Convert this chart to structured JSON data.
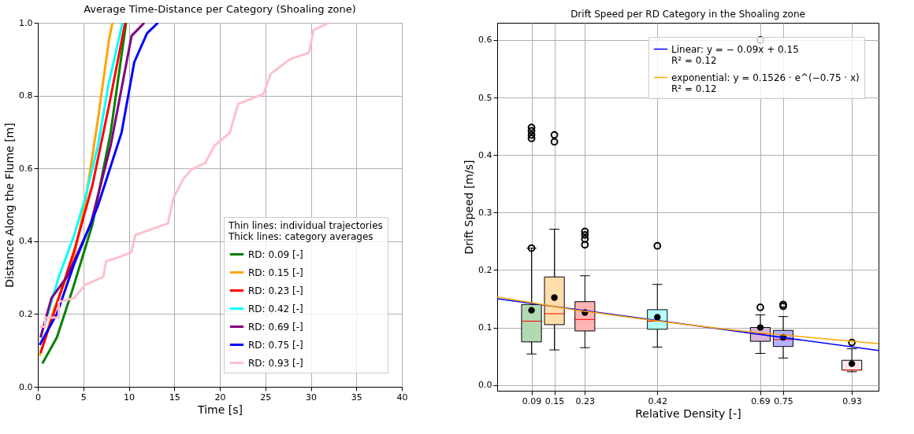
{
  "chart_data": [
    {
      "type": "line",
      "title": "Average Time-Distance per Category (Shoaling zone)",
      "xlabel": "Time [s]",
      "ylabel": "Distance Along the Flume [m]",
      "legend_title": "Thin lines: individual trajectories\nThick lines: category averages",
      "series": [
        {
          "name": "RD: 0.09 [-]",
          "color": "#008000",
          "x": [
            0.5,
            2.1,
            3.8,
            6.0,
            8.0,
            9.7
          ],
          "values": [
            0.064,
            0.136,
            0.266,
            0.446,
            0.698,
            1.0
          ]
        },
        {
          "name": "RD: 0.15 [-]",
          "color": "#ffa500",
          "x": [
            0.2,
            1.8,
            3.8,
            5.2,
            6.6,
            7.8,
            8.2
          ],
          "values": [
            0.085,
            0.215,
            0.338,
            0.504,
            0.734,
            0.95,
            1.0
          ]
        },
        {
          "name": "RD: 0.23 [-]",
          "color": "#ff0000",
          "x": [
            0.3,
            2.3,
            4.0,
            6.0,
            7.8,
            9.6
          ],
          "values": [
            0.093,
            0.244,
            0.374,
            0.554,
            0.77,
            1.0
          ]
        },
        {
          "name": "RD: 0.42 [-]",
          "color": "#00ffff",
          "x": [
            0.3,
            1.2,
            2.3,
            4.0,
            5.2,
            6.6,
            7.8,
            9.3
          ],
          "values": [
            0.136,
            0.208,
            0.302,
            0.417,
            0.518,
            0.662,
            0.834,
            1.0
          ]
        },
        {
          "name": "RD: 0.69 [-]",
          "color": "#800080",
          "x": [
            0.3,
            1.5,
            3.2,
            5.8,
            8.0,
            10.3,
            11.7
          ],
          "values": [
            0.136,
            0.244,
            0.302,
            0.446,
            0.662,
            0.964,
            1.0
          ]
        },
        {
          "name": "RD: 0.75 [-]",
          "color": "#0000ff",
          "x": [
            0.2,
            2.1,
            4.0,
            6.6,
            9.2,
            10.6,
            12.0,
            13.2
          ],
          "values": [
            0.115,
            0.201,
            0.338,
            0.497,
            0.698,
            0.892,
            0.971,
            1.0
          ]
        },
        {
          "name": "RD: 0.93 [-]",
          "color": "#ffc0cb",
          "x": [
            0.2,
            0.8,
            0.8,
            2.3,
            2.3,
            4.0,
            5.2,
            7.2,
            7.5,
            8.9,
            10.3,
            10.7,
            12.3,
            14.3,
            14.9,
            16.0,
            16.9,
            18.4,
            19.4,
            21.1,
            22.0,
            24.8,
            25.6,
            27.7,
            29.8,
            30.3,
            32.0
          ],
          "values": [
            0.165,
            0.165,
            0.19,
            0.19,
            0.233,
            0.244,
            0.28,
            0.302,
            0.345,
            0.356,
            0.37,
            0.417,
            0.431,
            0.449,
            0.518,
            0.572,
            0.597,
            0.615,
            0.662,
            0.698,
            0.777,
            0.805,
            0.86,
            0.9,
            0.918,
            0.98,
            1.0
          ]
        }
      ],
      "xlim": [
        0,
        40
      ],
      "xticks": [
        0,
        5,
        10,
        15,
        20,
        25,
        30,
        35,
        40
      ],
      "ylim": [
        0,
        1
      ],
      "yticks": [
        {
          "value": 0,
          "label": "0.0"
        },
        {
          "value": 0.2,
          "label": "0.2"
        },
        {
          "value": 0.4,
          "label": "0.4"
        },
        {
          "value": 0.6,
          "label": "0.6"
        },
        {
          "value": 0.8,
          "label": "0.8"
        },
        {
          "value": 1,
          "label": "1.0"
        }
      ],
      "grid": true,
      "legend": "bottom right"
    },
    {
      "type": "box",
      "title": "Drift Speed per RD Category in the Shoaling zone",
      "xlabel": "Relative Density [-]",
      "ylabel": "Drift Speed [m/s]",
      "x": [
        0.09,
        0.15,
        0.23,
        0.42,
        0.69,
        0.75,
        0.93
      ],
      "colors": [
        "#b3d9b3",
        "#ffdeab",
        "#ffb3b3",
        "#b3ffff",
        "#d9b3d9",
        "#b3b3ff",
        "#ffe8ec"
      ],
      "boxes": [
        {
          "low": 0.054,
          "q1": 0.075,
          "median": 0.111,
          "q3": 0.14,
          "high": 0.238,
          "mean": 0.13,
          "outliers": [
            0.238,
            0.429,
            0.435,
            0.442,
            0.448
          ]
        },
        {
          "low": 0.061,
          "q1": 0.105,
          "median": 0.124,
          "q3": 0.188,
          "high": 0.271,
          "mean": 0.152,
          "outliers": [
            0.423,
            0.435
          ]
        },
        {
          "low": 0.065,
          "q1": 0.094,
          "median": 0.114,
          "q3": 0.145,
          "high": 0.19,
          "mean": 0.126,
          "outliers": [
            0.244,
            0.254,
            0.261,
            0.267
          ]
        },
        {
          "low": 0.066,
          "q1": 0.097,
          "median": 0.111,
          "q3": 0.131,
          "high": 0.175,
          "mean": 0.118,
          "outliers": [
            0.242
          ]
        },
        {
          "low": 0.055,
          "q1": 0.076,
          "median": 0.089,
          "q3": 0.1,
          "high": 0.122,
          "mean": 0.1,
          "outliers": [
            0.135,
            0.6
          ]
        },
        {
          "low": 0.047,
          "q1": 0.067,
          "median": 0.079,
          "q3": 0.095,
          "high": 0.119,
          "mean": 0.083,
          "outliers": [
            0.137,
            0.14
          ]
        },
        {
          "low": 0.023,
          "q1": 0.026,
          "median": 0.026,
          "q3": 0.043,
          "high": 0.063,
          "mean": 0.037,
          "outliers": [
            0.074
          ]
        }
      ],
      "series": [
        {
          "type": "line",
          "name": "Linear: y = − 0.09x + 0.15\nR² = 0.12",
          "color": "#0000ff",
          "x": [
            0,
            1
          ],
          "values": [
            0.15,
            0.06
          ]
        },
        {
          "type": "line",
          "name": "exponential: y = 0.1526 · e^(−0.75 · x)\nR² = 0.12",
          "color": "#ffa500",
          "x": [
            0,
            0.1,
            0.2,
            0.3,
            0.4,
            0.5,
            0.6,
            0.7,
            0.8,
            0.9,
            1.0
          ],
          "values": [
            0.153,
            0.142,
            0.131,
            0.122,
            0.113,
            0.105,
            0.097,
            0.09,
            0.084,
            0.078,
            0.072
          ]
        }
      ],
      "xlim": [
        0,
        1
      ],
      "xticks": [
        0.09,
        0.15,
        0.23,
        0.42,
        0.69,
        0.75,
        0.93
      ],
      "ylim": [
        -0.01,
        0.63
      ],
      "yticks": [
        {
          "value": 0,
          "label": "0.0"
        },
        {
          "value": 0.1,
          "label": "0.1"
        },
        {
          "value": 0.2,
          "label": "0.2"
        },
        {
          "value": 0.3,
          "label": "0.3"
        },
        {
          "value": 0.4,
          "label": "0.4"
        },
        {
          "value": 0.5,
          "label": "0.5"
        },
        {
          "value": 0.6,
          "label": "0.6"
        }
      ],
      "grid": true,
      "legend": "top right"
    }
  ]
}
